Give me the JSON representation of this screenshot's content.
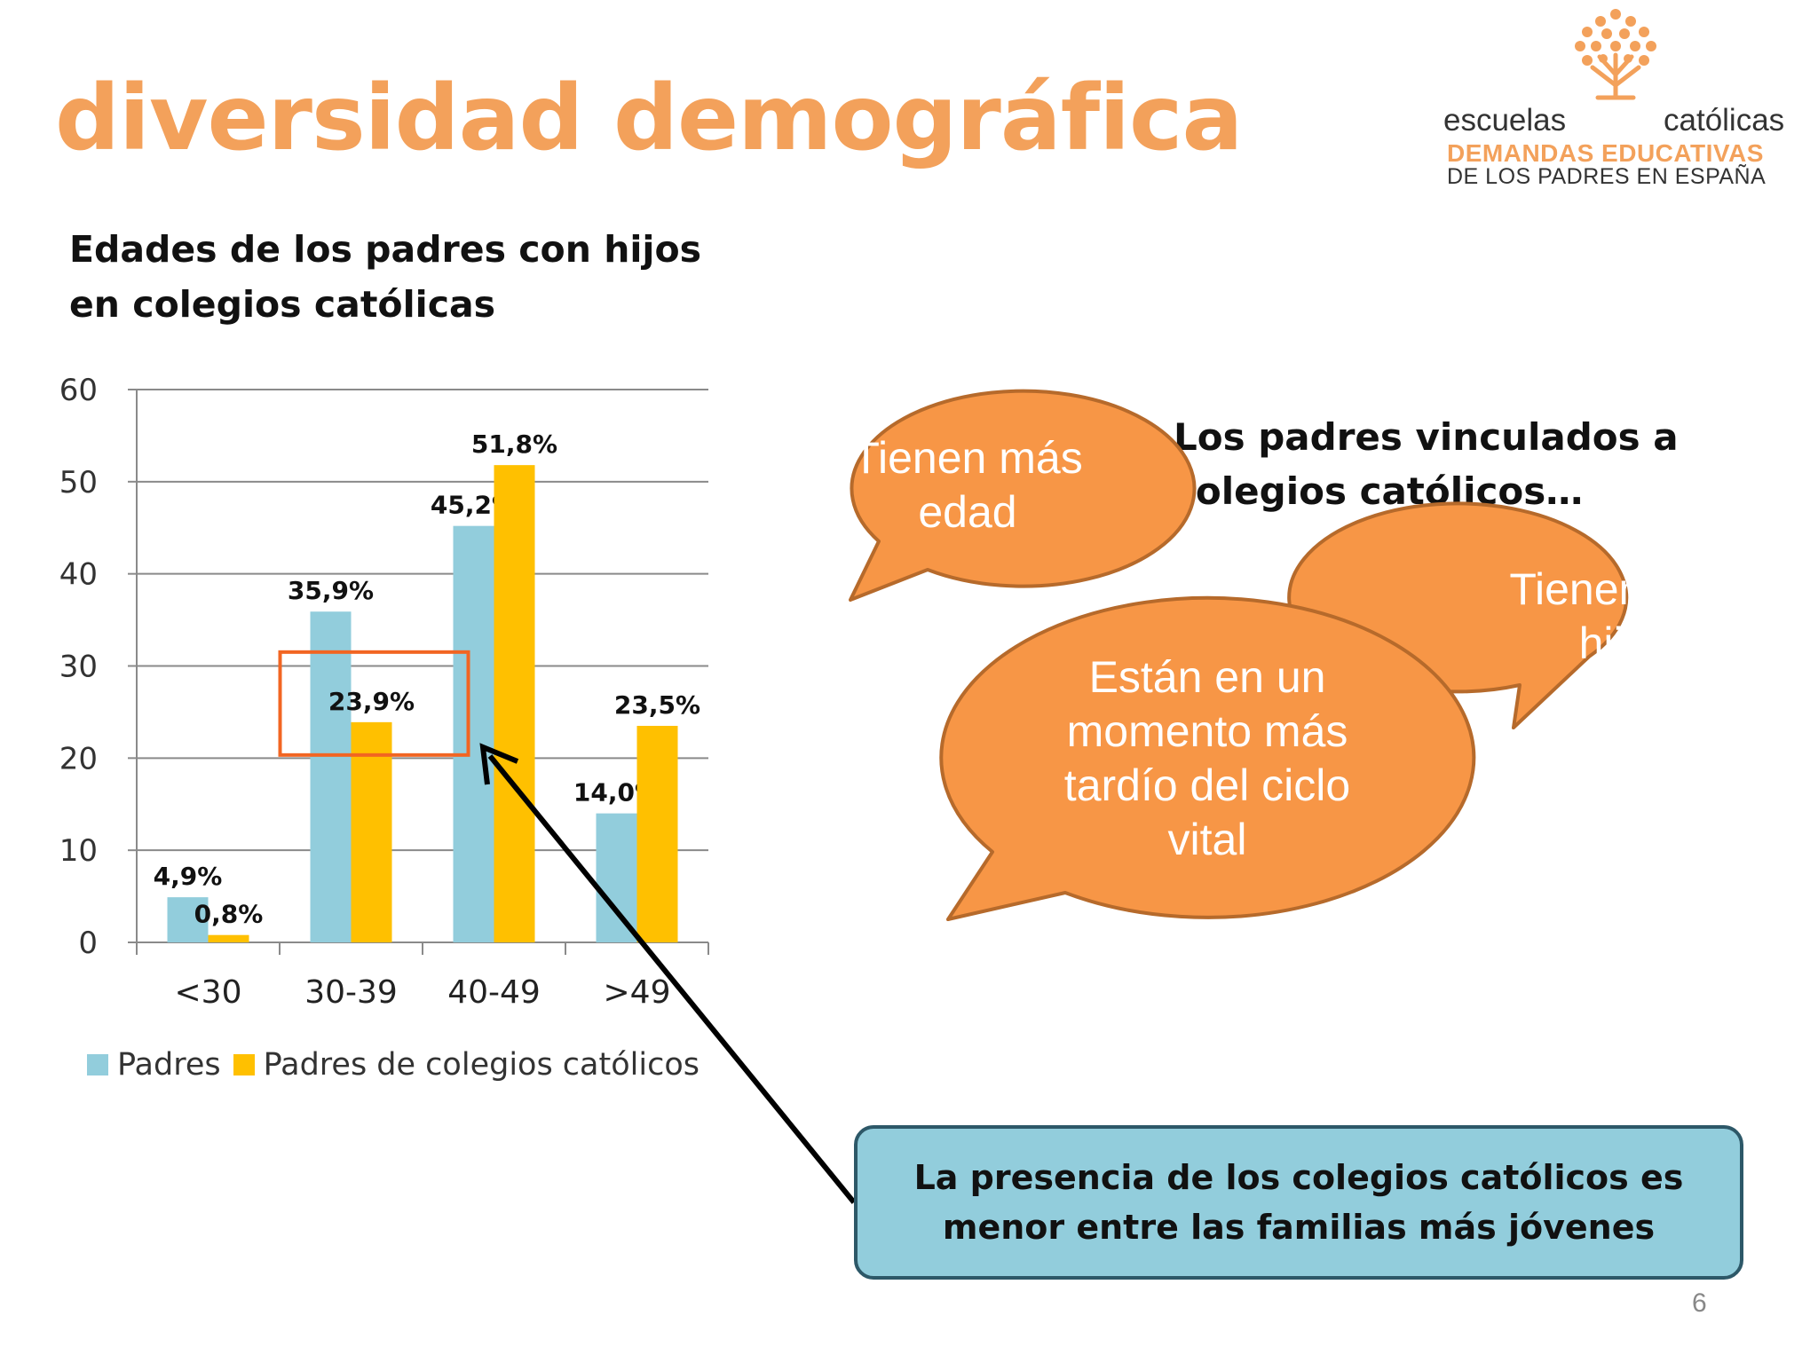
{
  "slide": {
    "title": "diversidad demográfica",
    "page_number": "6"
  },
  "logo": {
    "word_left": "escuelas",
    "word_right": "católicas",
    "tagline_1": "DEMANDAS EDUCATIVAS",
    "tagline_2": "DE LOS PADRES EN ESPAÑA",
    "brand_color": "#f3a15b"
  },
  "chart_data": {
    "type": "bar",
    "title": "Edades de los padres con hijos en colegios católicas",
    "categories": [
      "<30",
      "30-39",
      "40-49",
      ">49"
    ],
    "series": [
      {
        "name": "Padres",
        "values": [
          4.9,
          35.9,
          45.2,
          14.0
        ],
        "labels": [
          "4,9%",
          "35,9%",
          "45,2%",
          "14,0%"
        ],
        "color": "#92cddc"
      },
      {
        "name": "Padres de colegios católicos",
        "values": [
          0.8,
          23.9,
          51.8,
          23.5
        ],
        "labels": [
          "0,8%",
          "23,9%",
          "51,8%",
          "23,5%"
        ],
        "color": "#ffc000"
      }
    ],
    "yticks": [
      "0",
      "10",
      "20",
      "30",
      "40",
      "50",
      "60"
    ],
    "ylim": [
      0,
      60
    ],
    "grid": true,
    "legend_position": "bottom",
    "highlight": {
      "category": "30-39",
      "series": "Padres de colegios católicos",
      "color": "#f26522"
    }
  },
  "intro_text": "Los padres vinculados a colegios católicos…",
  "bubbles": {
    "edad": "Tienen más edad",
    "hijos": "Tienen más hijos",
    "ciclo": "Están en un momento más tardío del ciclo vital",
    "fill": "#f79646",
    "stroke": "#b66a2b"
  },
  "callout": {
    "text": "La presencia de los colegios católicos es menor entre las familias más jóvenes",
    "fill": "#92cddc",
    "border": "#2d5868"
  }
}
